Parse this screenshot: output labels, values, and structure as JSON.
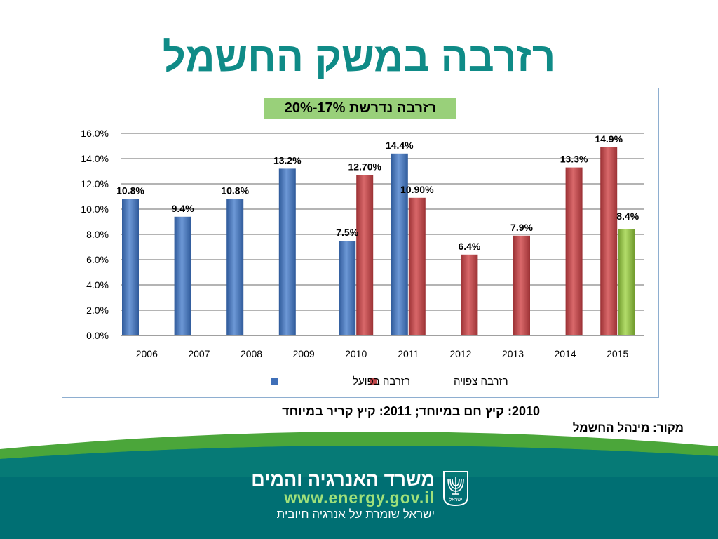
{
  "slide": {
    "title": "רזרבה במשק החשמל",
    "required_reserve": "רזרבה נדרשת 17%-20%",
    "footnote": "2010: קיץ חם במיוחד; 2011: קיץ קריר במיוחד",
    "source": "מקור: מינהל החשמל"
  },
  "footer": {
    "ministry": "משרד האנרגיה והמים",
    "website": "www.energy.gov.il",
    "tagline": "ישראל שומרת על אנרגיה חיובית",
    "emblem_text": "ישראל"
  },
  "colors": {
    "title": "#0f8b87",
    "actual": "#3f6fb8",
    "forecast": "#c0474a",
    "highlight": "#8fbf42",
    "footer_bg": "#006f73",
    "footer_arc": "#4ba63a"
  },
  "chart_data": {
    "type": "bar",
    "categories": [
      "2006",
      "2007",
      "2008",
      "2009",
      "2010",
      "2011",
      "2012",
      "2013",
      "2014",
      "2015"
    ],
    "series": [
      {
        "name": "רזרבה בפועל",
        "values": [
          10.8,
          9.4,
          10.8,
          13.2,
          7.5,
          14.4,
          null,
          null,
          null,
          null
        ],
        "labels": [
          "10.8%",
          "9.4%",
          "10.8%",
          "13.2%",
          "7.5%",
          "14.4%",
          "",
          "",
          "",
          ""
        ]
      },
      {
        "name": "רזרבה צפויה",
        "values": [
          null,
          null,
          null,
          null,
          12.7,
          10.9,
          6.4,
          7.9,
          13.3,
          14.9
        ],
        "labels": [
          "",
          "",
          "",
          "",
          "12.70%",
          "10.90%",
          "6.4%",
          "7.9%",
          "13.3%",
          "14.9%"
        ]
      }
    ],
    "extra_bar": {
      "category": "2015",
      "value": 8.4,
      "label": "8.4%",
      "color": "#8fbf42"
    },
    "y_ticks": [
      "0.0%",
      "2.0%",
      "4.0%",
      "6.0%",
      "8.0%",
      "10.0%",
      "12.0%",
      "14.0%",
      "16.0%"
    ],
    "ylim": [
      0,
      16
    ],
    "grid": true,
    "legend_position": "bottom"
  }
}
